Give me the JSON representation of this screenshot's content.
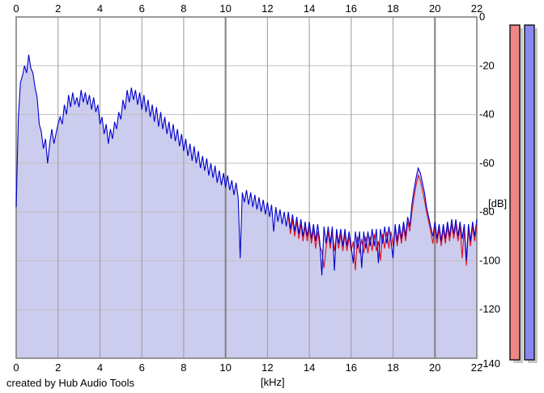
{
  "footer": {
    "credit": "created by Hub Audio Tools"
  },
  "colors": {
    "background": "#ffffff",
    "plot_border": "#808080",
    "grid_horizontal": "#c0c0c0",
    "grid_vertical": "#999999",
    "grid_major_vertical": "#808080",
    "spectrum_fill": "#ccccee",
    "spectrum_line": "#0000cd",
    "spectrum_line_secondary": "#dd1122",
    "meter_left_fill": "#ef8585",
    "meter_right_fill": "#8888ee",
    "meter_border": "#111111",
    "meter_shadow": "#c8c8c8",
    "tick_text": "#000000"
  },
  "meters": {
    "left": {
      "name": "level-meter-left",
      "color": "#ef8585",
      "extent": "full-scale"
    },
    "right": {
      "name": "level-meter-right",
      "color": "#8888ee",
      "extent": "full-scale"
    }
  },
  "chart_data": {
    "type": "area",
    "title": "",
    "xlabel": "[kHz]",
    "ylabel": "[dB]",
    "x_range": [
      0,
      22
    ],
    "y_range": [
      -140,
      0
    ],
    "grid": true,
    "x_ticks": [
      "0",
      "2",
      "4",
      "6",
      "8",
      "10",
      "12",
      "14",
      "16",
      "18",
      "20",
      "22"
    ],
    "x_ticks_positions": [
      0,
      2,
      4,
      6,
      8,
      10,
      12,
      14,
      16,
      18,
      20,
      22
    ],
    "x_major_ticks": [
      0,
      10,
      20
    ],
    "y_ticks": [
      "0",
      "-20",
      "-40",
      "-60",
      "-80",
      "-100",
      "-120",
      "-140"
    ],
    "y_ticks_positions": [
      0,
      -20,
      -40,
      -60,
      -80,
      -100,
      -120,
      -140
    ],
    "x_axis_labels_top_and_bottom": true,
    "series": [
      {
        "name": "spectrum-secondary-red",
        "color": "#dd1122",
        "x_start": 13.0,
        "x_step": 0.1,
        "values": [
          -82,
          -89,
          -83,
          -90,
          -84,
          -91,
          -85,
          -92,
          -86,
          -92,
          -86,
          -93,
          -87,
          -95,
          -88,
          -94,
          -96,
          -103,
          -95,
          -88,
          -95,
          -88,
          -96,
          -89,
          -95,
          -89,
          -96,
          -89,
          -96,
          -90,
          -96,
          -92,
          -104,
          -90,
          -97,
          -91,
          -97,
          -90,
          -97,
          -90,
          -96,
          -89,
          -96,
          -92,
          -100,
          -89,
          -95,
          -88,
          -95,
          -88,
          -94,
          -87,
          -94,
          -87,
          -93,
          -86,
          -92,
          -84,
          -88,
          -80,
          -74,
          -69,
          -65,
          -67,
          -71,
          -75,
          -80,
          -84,
          -88,
          -93,
          -86,
          -93,
          -87,
          -94,
          -87,
          -93,
          -86,
          -92,
          -85,
          -91,
          -85,
          -92,
          -86,
          -99,
          -87,
          -102,
          -87,
          -94,
          -86,
          -92,
          -85
        ]
      },
      {
        "name": "spectrum-main-blue",
        "color": "#0000cd",
        "fill": "#ccccee",
        "x_start": 0.0,
        "x_step": 0.1,
        "values": [
          -78,
          -42,
          -27,
          -24,
          -20,
          -23,
          -15.5,
          -21,
          -23,
          -29,
          -33,
          -44,
          -47,
          -54,
          -50,
          -60,
          -52,
          -46,
          -52,
          -48,
          -44,
          -41,
          -44,
          -36,
          -40,
          -32,
          -37,
          -31,
          -36,
          -33,
          -37,
          -30,
          -35,
          -31,
          -36,
          -32,
          -38,
          -33,
          -39,
          -36,
          -44,
          -41,
          -48,
          -44,
          -52,
          -46,
          -50,
          -43,
          -46,
          -39,
          -42,
          -34,
          -38,
          -30,
          -35,
          -29,
          -34,
          -30,
          -36,
          -31,
          -38,
          -32,
          -39,
          -34,
          -41,
          -36,
          -43,
          -37,
          -45,
          -39,
          -46,
          -41,
          -48,
          -43,
          -50,
          -44,
          -51,
          -46,
          -53,
          -48,
          -55,
          -50,
          -57,
          -52,
          -59,
          -53,
          -60,
          -55,
          -62,
          -57,
          -63,
          -58,
          -65,
          -60,
          -66,
          -61,
          -68,
          -63,
          -69,
          -64,
          -70,
          -65,
          -71,
          -67,
          -73,
          -68,
          -74,
          -99,
          -72,
          -76,
          -71,
          -77,
          -72,
          -78,
          -73,
          -79,
          -74,
          -80,
          -75,
          -81,
          -76,
          -82,
          -77,
          -88,
          -78,
          -84,
          -79,
          -85,
          -80,
          -86,
          -80,
          -87,
          -81,
          -88,
          -82,
          -89,
          -83,
          -90,
          -84,
          -90,
          -84,
          -91,
          -85,
          -92,
          -85,
          -92,
          -106,
          -86,
          -93,
          -86,
          -93,
          -86,
          -104,
          -87,
          -93,
          -87,
          -94,
          -87,
          -94,
          -88,
          -94,
          -101,
          -88,
          -95,
          -88,
          -103,
          -88,
          -95,
          -88,
          -94,
          -87,
          -94,
          -87,
          -101,
          -87,
          -93,
          -86,
          -93,
          -86,
          -92,
          -99,
          -85,
          -92,
          -85,
          -91,
          -84,
          -90,
          -82,
          -86,
          -77,
          -71,
          -66,
          -62,
          -64,
          -68,
          -72,
          -78,
          -82,
          -86,
          -90,
          -84,
          -91,
          -85,
          -92,
          -85,
          -91,
          -84,
          -90,
          -83,
          -89,
          -83,
          -90,
          -84,
          -91,
          -85,
          -100,
          -85,
          -92,
          -84,
          -90,
          -83
        ]
      }
    ]
  }
}
